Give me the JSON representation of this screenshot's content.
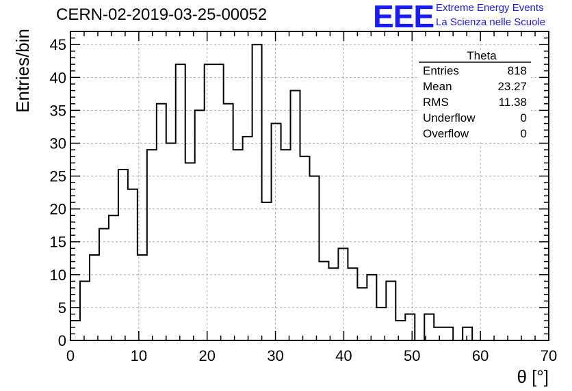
{
  "header": {
    "title": "CERN-02-2019-03-25-00052",
    "logo_text": "EEE",
    "logo_line1": "Extreme Energy Events",
    "logo_line2": "La Scienza nelle Scuole",
    "logo_color": "#1a1aff"
  },
  "stats_box": {
    "name": "Theta",
    "rows": [
      {
        "label": "Entries",
        "value": "818"
      },
      {
        "label": "Mean",
        "value": "23.27"
      },
      {
        "label": "RMS",
        "value": "11.38"
      },
      {
        "label": "Underflow",
        "value": "0"
      },
      {
        "label": "Overflow",
        "value": "0"
      }
    ]
  },
  "chart_data": {
    "type": "histogram",
    "xlabel": "θ [°]",
    "ylabel": "Entries/bin",
    "xlim": [
      0,
      70
    ],
    "ylim": [
      0,
      47
    ],
    "x_ticks": [
      0,
      10,
      20,
      30,
      40,
      50,
      60,
      70
    ],
    "y_ticks": [
      0,
      5,
      10,
      15,
      20,
      25,
      30,
      35,
      40,
      45
    ],
    "grid": true,
    "bin_width": 1.4,
    "bin_start": 0,
    "values": [
      3,
      9,
      13,
      17,
      19,
      26,
      23,
      13,
      29,
      36,
      30,
      42,
      27,
      35,
      42,
      42,
      36,
      29,
      31,
      45,
      21,
      33,
      29,
      38,
      28,
      25,
      12,
      11,
      14,
      11,
      8,
      10,
      5,
      9,
      3,
      4,
      0,
      4,
      2,
      2,
      0,
      2,
      0,
      0,
      0,
      0,
      0,
      0,
      0,
      0
    ],
    "line_color": "#000000"
  }
}
